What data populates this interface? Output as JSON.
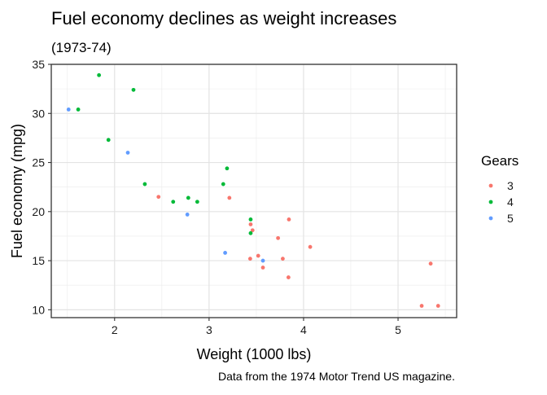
{
  "chart_data": {
    "type": "scatter",
    "title": "Fuel economy declines as weight increases",
    "subtitle": "(1973-74)",
    "xlabel": "Weight (1000 lbs)",
    "ylabel": "Fuel economy (mpg)",
    "caption": "Data from the 1974 Motor Trend US magazine.",
    "xlim": [
      1.33,
      5.62
    ],
    "ylim": [
      9.2,
      35.0
    ],
    "x_ticks": [
      2,
      3,
      4,
      5
    ],
    "y_ticks": [
      10,
      15,
      20,
      25,
      30,
      35
    ],
    "grid": true,
    "legend": {
      "title": "Gears",
      "position": "right",
      "entries": [
        "3",
        "4",
        "5"
      ]
    },
    "series": [
      {
        "name": "3",
        "color": "#F8766D",
        "points": [
          {
            "x": 3.215,
            "y": 21.4
          },
          {
            "x": 3.44,
            "y": 18.7
          },
          {
            "x": 3.46,
            "y": 18.1
          },
          {
            "x": 3.57,
            "y": 14.3
          },
          {
            "x": 4.07,
            "y": 16.4
          },
          {
            "x": 3.73,
            "y": 17.3
          },
          {
            "x": 3.78,
            "y": 15.2
          },
          {
            "x": 5.25,
            "y": 10.4
          },
          {
            "x": 5.424,
            "y": 10.4
          },
          {
            "x": 5.345,
            "y": 14.7
          },
          {
            "x": 2.465,
            "y": 21.5
          },
          {
            "x": 3.52,
            "y": 15.5
          },
          {
            "x": 3.435,
            "y": 15.2
          },
          {
            "x": 3.84,
            "y": 13.3
          },
          {
            "x": 3.845,
            "y": 19.2
          }
        ]
      },
      {
        "name": "4",
        "color": "#00BA38",
        "points": [
          {
            "x": 2.62,
            "y": 21.0
          },
          {
            "x": 2.875,
            "y": 21.0
          },
          {
            "x": 2.32,
            "y": 22.8
          },
          {
            "x": 3.19,
            "y": 24.4
          },
          {
            "x": 3.15,
            "y": 22.8
          },
          {
            "x": 3.44,
            "y": 19.2
          },
          {
            "x": 3.44,
            "y": 17.8
          },
          {
            "x": 2.2,
            "y": 32.4
          },
          {
            "x": 1.615,
            "y": 30.4
          },
          {
            "x": 1.835,
            "y": 33.9
          },
          {
            "x": 1.935,
            "y": 27.3
          },
          {
            "x": 2.78,
            "y": 21.4
          }
        ]
      },
      {
        "name": "5",
        "color": "#619CFF",
        "points": [
          {
            "x": 2.14,
            "y": 26.0
          },
          {
            "x": 1.513,
            "y": 30.4
          },
          {
            "x": 3.17,
            "y": 15.8
          },
          {
            "x": 2.77,
            "y": 19.7
          },
          {
            "x": 3.57,
            "y": 15.0
          }
        ]
      }
    ]
  }
}
